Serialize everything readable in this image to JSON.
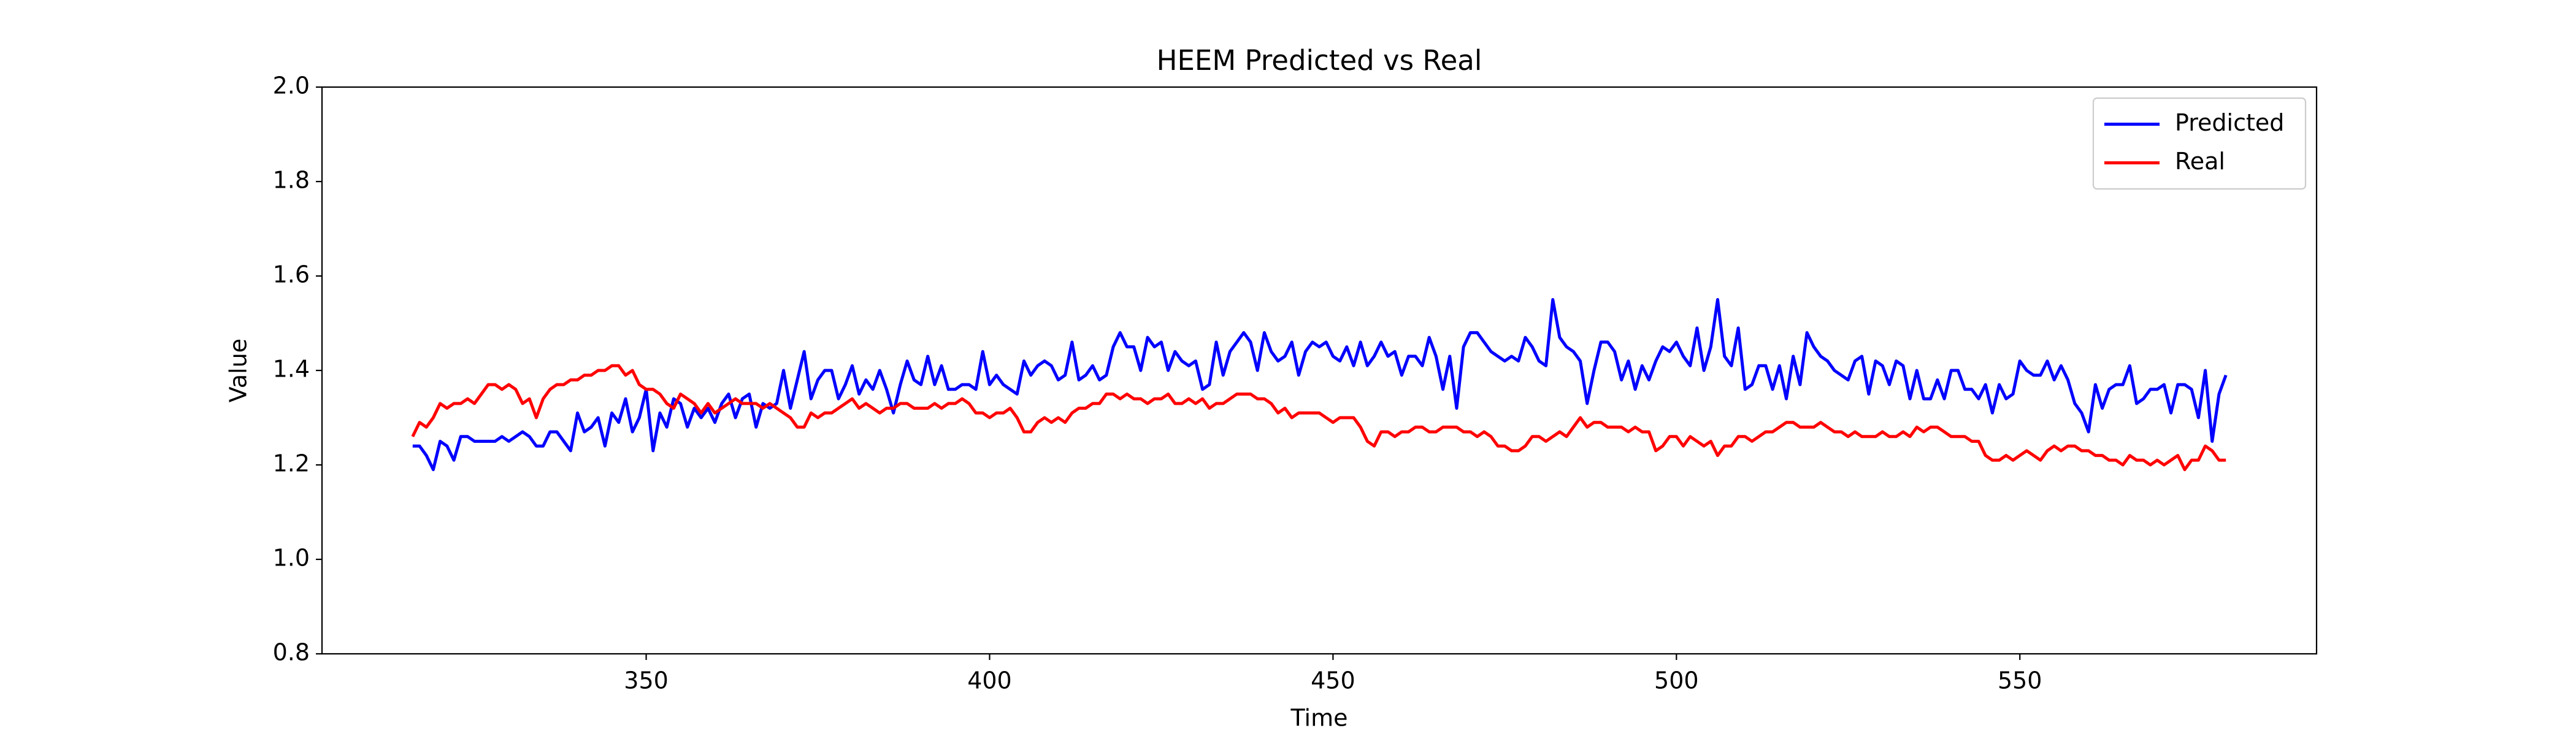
{
  "chart_data": {
    "type": "line",
    "title": "HEEM Predicted vs Real",
    "x_label": "Time",
    "y_label": "Value",
    "x": [
      316,
      317,
      318,
      319,
      320,
      321,
      322,
      323,
      324,
      325,
      326,
      327,
      328,
      329,
      330,
      331,
      332,
      333,
      334,
      335,
      336,
      337,
      338,
      339,
      340,
      341,
      342,
      343,
      344,
      345,
      346,
      347,
      348,
      349,
      350,
      351,
      352,
      353,
      354,
      355,
      356,
      357,
      358,
      359,
      360,
      361,
      362,
      363,
      364,
      365,
      366,
      367,
      368,
      369,
      370,
      371,
      372,
      373,
      374,
      375,
      376,
      377,
      378,
      379,
      380,
      381,
      382,
      383,
      384,
      385,
      386,
      387,
      388,
      389,
      390,
      391,
      392,
      393,
      394,
      395,
      396,
      397,
      398,
      399,
      400,
      401,
      402,
      403,
      404,
      405,
      406,
      407,
      408,
      409,
      410,
      411,
      412,
      413,
      414,
      415,
      416,
      417,
      418,
      419,
      420,
      421,
      422,
      423,
      424,
      425,
      426,
      427,
      428,
      429,
      430,
      431,
      432,
      433,
      434,
      435,
      436,
      437,
      438,
      439,
      440,
      441,
      442,
      443,
      444,
      445,
      446,
      447,
      448,
      449,
      450,
      451,
      452,
      453,
      454,
      455,
      456,
      457,
      458,
      459,
      460,
      461,
      462,
      463,
      464,
      465,
      466,
      467,
      468,
      469,
      470,
      471,
      472,
      473,
      474,
      475,
      476,
      477,
      478,
      479,
      480,
      481,
      482,
      483,
      484,
      485,
      486,
      487,
      488,
      489,
      490,
      491,
      492,
      493,
      494,
      495,
      496,
      497,
      498,
      499,
      500,
      501,
      502,
      503,
      504,
      505,
      506,
      507,
      508,
      509,
      510,
      511,
      512,
      513,
      514,
      515,
      516,
      517,
      518,
      519,
      520,
      521,
      522,
      523,
      524,
      525,
      526,
      527,
      528,
      529,
      530,
      531,
      532,
      533,
      534,
      535,
      536,
      537,
      538,
      539,
      540,
      541,
      542,
      543,
      544,
      545,
      546,
      547,
      548,
      549,
      550,
      551,
      552,
      553,
      554,
      555,
      556,
      557,
      558,
      559,
      560,
      561,
      562,
      563,
      564,
      565,
      566,
      567,
      568,
      569,
      570,
      571,
      572,
      573,
      574,
      575,
      576,
      577,
      578,
      579,
      580
    ],
    "series": [
      {
        "name": "Predicted",
        "color": "#0000ff",
        "values": [
          1.24,
          1.24,
          1.22,
          1.19,
          1.25,
          1.24,
          1.21,
          1.26,
          1.26,
          1.25,
          1.25,
          1.25,
          1.25,
          1.26,
          1.25,
          1.26,
          1.27,
          1.26,
          1.24,
          1.24,
          1.27,
          1.27,
          1.25,
          1.23,
          1.31,
          1.27,
          1.28,
          1.3,
          1.24,
          1.31,
          1.29,
          1.34,
          1.27,
          1.3,
          1.36,
          1.23,
          1.31,
          1.28,
          1.34,
          1.33,
          1.28,
          1.32,
          1.3,
          1.32,
          1.29,
          1.33,
          1.35,
          1.3,
          1.34,
          1.35,
          1.28,
          1.33,
          1.32,
          1.33,
          1.4,
          1.32,
          1.38,
          1.44,
          1.34,
          1.38,
          1.4,
          1.4,
          1.34,
          1.37,
          1.41,
          1.35,
          1.38,
          1.36,
          1.4,
          1.36,
          1.31,
          1.37,
          1.42,
          1.38,
          1.37,
          1.43,
          1.37,
          1.41,
          1.36,
          1.36,
          1.37,
          1.37,
          1.36,
          1.44,
          1.37,
          1.39,
          1.37,
          1.36,
          1.35,
          1.42,
          1.39,
          1.41,
          1.42,
          1.41,
          1.38,
          1.39,
          1.46,
          1.38,
          1.39,
          1.41,
          1.38,
          1.39,
          1.45,
          1.48,
          1.45,
          1.45,
          1.4,
          1.47,
          1.45,
          1.46,
          1.4,
          1.44,
          1.42,
          1.41,
          1.42,
          1.36,
          1.37,
          1.46,
          1.39,
          1.44,
          1.46,
          1.48,
          1.46,
          1.4,
          1.48,
          1.44,
          1.42,
          1.43,
          1.46,
          1.39,
          1.44,
          1.46,
          1.45,
          1.46,
          1.43,
          1.42,
          1.45,
          1.41,
          1.46,
          1.41,
          1.43,
          1.46,
          1.43,
          1.44,
          1.39,
          1.43,
          1.43,
          1.41,
          1.47,
          1.43,
          1.36,
          1.43,
          1.32,
          1.45,
          1.48,
          1.48,
          1.46,
          1.44,
          1.43,
          1.42,
          1.43,
          1.42,
          1.47,
          1.45,
          1.42,
          1.41,
          1.55,
          1.47,
          1.45,
          1.44,
          1.42,
          1.33,
          1.4,
          1.46,
          1.46,
          1.44,
          1.38,
          1.42,
          1.36,
          1.41,
          1.38,
          1.42,
          1.45,
          1.44,
          1.46,
          1.43,
          1.41,
          1.49,
          1.4,
          1.45,
          1.55,
          1.43,
          1.41,
          1.49,
          1.36,
          1.37,
          1.41,
          1.41,
          1.36,
          1.41,
          1.34,
          1.43,
          1.37,
          1.48,
          1.45,
          1.43,
          1.42,
          1.4,
          1.39,
          1.38,
          1.42,
          1.43,
          1.35,
          1.42,
          1.41,
          1.37,
          1.42,
          1.41,
          1.34,
          1.4,
          1.34,
          1.34,
          1.38,
          1.34,
          1.4,
          1.4,
          1.36,
          1.36,
          1.34,
          1.37,
          1.31,
          1.37,
          1.34,
          1.35,
          1.42,
          1.4,
          1.39,
          1.39,
          1.42,
          1.38,
          1.41,
          1.38,
          1.33,
          1.31,
          1.27,
          1.37,
          1.32,
          1.36,
          1.37,
          1.37,
          1.41,
          1.33,
          1.34,
          1.36,
          1.36,
          1.37,
          1.31,
          1.37,
          1.37,
          1.36,
          1.3,
          1.4,
          1.25,
          1.35,
          1.39
        ]
      },
      {
        "name": "Real",
        "color": "#ff0000",
        "values": [
          1.26,
          1.29,
          1.28,
          1.3,
          1.33,
          1.32,
          1.33,
          1.33,
          1.34,
          1.33,
          1.35,
          1.37,
          1.37,
          1.36,
          1.37,
          1.36,
          1.33,
          1.34,
          1.3,
          1.34,
          1.36,
          1.37,
          1.37,
          1.38,
          1.38,
          1.39,
          1.39,
          1.4,
          1.4,
          1.41,
          1.41,
          1.39,
          1.4,
          1.37,
          1.36,
          1.36,
          1.35,
          1.33,
          1.32,
          1.35,
          1.34,
          1.33,
          1.31,
          1.33,
          1.31,
          1.32,
          1.33,
          1.34,
          1.33,
          1.33,
          1.33,
          1.32,
          1.33,
          1.32,
          1.31,
          1.3,
          1.28,
          1.28,
          1.31,
          1.3,
          1.31,
          1.31,
          1.32,
          1.33,
          1.34,
          1.32,
          1.33,
          1.32,
          1.31,
          1.32,
          1.32,
          1.33,
          1.33,
          1.32,
          1.32,
          1.32,
          1.33,
          1.32,
          1.33,
          1.33,
          1.34,
          1.33,
          1.31,
          1.31,
          1.3,
          1.31,
          1.31,
          1.32,
          1.3,
          1.27,
          1.27,
          1.29,
          1.3,
          1.29,
          1.3,
          1.29,
          1.31,
          1.32,
          1.32,
          1.33,
          1.33,
          1.35,
          1.35,
          1.34,
          1.35,
          1.34,
          1.34,
          1.33,
          1.34,
          1.34,
          1.35,
          1.33,
          1.33,
          1.34,
          1.33,
          1.34,
          1.32,
          1.33,
          1.33,
          1.34,
          1.35,
          1.35,
          1.35,
          1.34,
          1.34,
          1.33,
          1.31,
          1.32,
          1.3,
          1.31,
          1.31,
          1.31,
          1.31,
          1.3,
          1.29,
          1.3,
          1.3,
          1.3,
          1.28,
          1.25,
          1.24,
          1.27,
          1.27,
          1.26,
          1.27,
          1.27,
          1.28,
          1.28,
          1.27,
          1.27,
          1.28,
          1.28,
          1.28,
          1.27,
          1.27,
          1.26,
          1.27,
          1.26,
          1.24,
          1.24,
          1.23,
          1.23,
          1.24,
          1.26,
          1.26,
          1.25,
          1.26,
          1.27,
          1.26,
          1.28,
          1.3,
          1.28,
          1.29,
          1.29,
          1.28,
          1.28,
          1.28,
          1.27,
          1.28,
          1.27,
          1.27,
          1.23,
          1.24,
          1.26,
          1.26,
          1.24,
          1.26,
          1.25,
          1.24,
          1.25,
          1.22,
          1.24,
          1.24,
          1.26,
          1.26,
          1.25,
          1.26,
          1.27,
          1.27,
          1.28,
          1.29,
          1.29,
          1.28,
          1.28,
          1.28,
          1.29,
          1.28,
          1.27,
          1.27,
          1.26,
          1.27,
          1.26,
          1.26,
          1.26,
          1.27,
          1.26,
          1.26,
          1.27,
          1.26,
          1.28,
          1.27,
          1.28,
          1.28,
          1.27,
          1.26,
          1.26,
          1.26,
          1.25,
          1.25,
          1.22,
          1.21,
          1.21,
          1.22,
          1.21,
          1.22,
          1.23,
          1.22,
          1.21,
          1.23,
          1.24,
          1.23,
          1.24,
          1.24,
          1.23,
          1.23,
          1.22,
          1.22,
          1.21,
          1.21,
          1.2,
          1.22,
          1.21,
          1.21,
          1.2,
          1.21,
          1.2,
          1.21,
          1.22,
          1.19,
          1.21,
          1.21,
          1.24,
          1.23,
          1.21,
          1.21
        ]
      }
    ],
    "xlim": [
      302.8,
      593.2
    ],
    "xticks": [
      350,
      400,
      450,
      500,
      550
    ],
    "ylim": [
      0.8,
      2.0
    ],
    "yticks": [
      0.8,
      {
        "value": 1.0,
        "label": "1.0"
      },
      1.2,
      1.4,
      1.6,
      1.8,
      {
        "value": 2.0,
        "label": "2.0"
      }
    ],
    "legend": "upper right",
    "grid": false
  }
}
